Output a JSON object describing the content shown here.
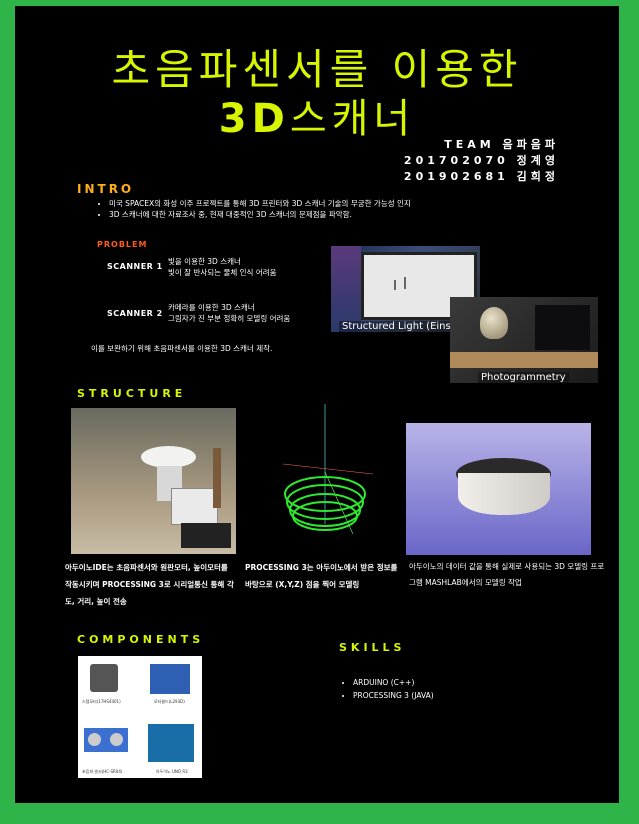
{
  "title_line1": "초음파센서를 이용한",
  "title_line2_bold": "3D",
  "title_line2_rest": "스캐너",
  "team": {
    "line1": "TEAM 음파음파",
    "line2": "201702070 정계영",
    "line3": "201902681 김희정"
  },
  "intro": {
    "heading": "INTRO",
    "bullets": [
      "미국 SPACEX의 화성 이주 프로젝트를 통해 3D 프린터와 3D 스캐너 기술의 무궁한 가능성 인지",
      "3D 스캐너에 대한 자료조사 중, 현재 대중적인 3D 스캐너의 문제점을 파악함."
    ]
  },
  "problem": {
    "heading": "PROBLEM",
    "scanner1_label": "SCANNER 1",
    "scanner1_line1": "빛을 이용한 3D 스캐너",
    "scanner1_line2": "빛이 잘 반사되는 물체 인식 어려움",
    "scanner2_label": "SCANNER 2",
    "scanner2_line1": "카메라를 이용한 3D 스캐너",
    "scanner2_line2": "그림자가 진 부분 정확히 모델링 어려움",
    "solution": "이를 보완하기 위해 초음파센서를 이용한 3D 스캐너 제작."
  },
  "photos": {
    "photo1_caption": "Structured Light (Einscan)",
    "photo2_caption": "Photogrammetry"
  },
  "structure": {
    "heading": "STRUCTURE",
    "col1": "아두이노IDE는 초음파센서와 원판모터, 높이모터를 작동시키며 PROCESSING 3로 시리얼통신 통해 각도, 거리, 높이 전송",
    "col2": "PROCESSING 3는 아두이노에서 받은 정보를 바탕으로 (X,Y,Z) 점을 찍어 모델링",
    "col3": "아두이노의 데이터 값을 통해 실제로 사용되는 3D 모델링 프로그램 MASHLAB에서의 모델링 작업"
  },
  "components": {
    "heading": "COMPONENTS",
    "items": [
      "스텝모터(17HS4401)",
      "모터쉴드(L293D)",
      "초음파 센서(HC-SR04)",
      "아두이노 UNO R3"
    ]
  },
  "skills": {
    "heading": "SKILLS",
    "items": [
      "ARDUINO (C++)",
      "PROCESSING 3 (JAVA)"
    ]
  },
  "colors": {
    "background": "#2fb44a",
    "poster": "#000000",
    "title": "#d7f500",
    "accent_orange": "#ffae1a"
  }
}
